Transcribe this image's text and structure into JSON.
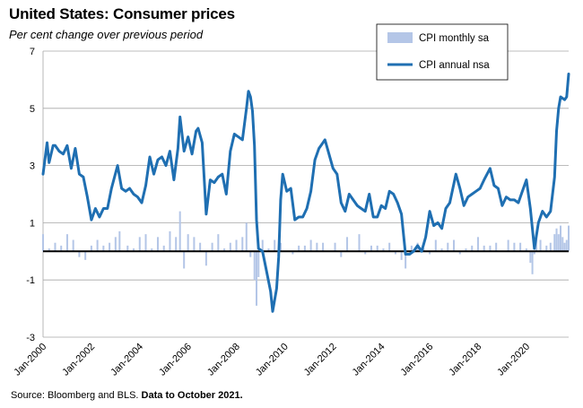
{
  "title": "United States: Consumer prices",
  "subtitle": "Per cent change over previous period",
  "source": {
    "prefix": "Source: Bloomberg and BLS.",
    "note": "Data to October 2021."
  },
  "colors": {
    "monthly": "#b4c6e7",
    "annual": "#1f6fb2",
    "grid": "#a6a6a6",
    "axis": "#000000"
  },
  "chart_data": {
    "type": "line",
    "ylim": [
      -3,
      7
    ],
    "y_ticks": [
      7,
      5,
      3,
      1,
      -1,
      -3
    ],
    "grid": true,
    "legend_position": "top-right",
    "x_range": [
      "2000-01",
      "2021-10"
    ],
    "x_ticks": [
      "Jan-2000",
      "Jan-2002",
      "Jan-2004",
      "Jan-2006",
      "Jan-2008",
      "Jan-2010",
      "Jan-2012",
      "Jan-2014",
      "Jan-2016",
      "Jan-2018",
      "Jan-2020"
    ],
    "series": [
      {
        "name": "CPI monthly sa",
        "kind": "bar",
        "x": [
          "2000-01",
          "2000-04",
          "2000-07",
          "2000-10",
          "2001-01",
          "2001-04",
          "2001-07",
          "2001-10",
          "2002-01",
          "2002-04",
          "2002-07",
          "2002-10",
          "2003-01",
          "2003-03",
          "2003-07",
          "2003-10",
          "2004-01",
          "2004-04",
          "2004-07",
          "2004-10",
          "2005-01",
          "2005-04",
          "2005-07",
          "2005-09",
          "2005-11",
          "2006-01",
          "2006-04",
          "2006-07",
          "2006-10",
          "2007-01",
          "2007-04",
          "2007-07",
          "2007-10",
          "2008-01",
          "2008-04",
          "2008-06",
          "2008-08",
          "2008-10",
          "2008-11",
          "2008-12",
          "2009-02",
          "2009-05",
          "2009-08",
          "2009-11",
          "2010-02",
          "2010-05",
          "2010-08",
          "2010-11",
          "2011-02",
          "2011-05",
          "2011-08",
          "2011-11",
          "2012-02",
          "2012-05",
          "2012-08",
          "2012-11",
          "2013-02",
          "2013-05",
          "2013-08",
          "2013-11",
          "2014-02",
          "2014-05",
          "2014-08",
          "2014-11",
          "2015-01",
          "2015-04",
          "2015-07",
          "2015-10",
          "2016-01",
          "2016-04",
          "2016-07",
          "2016-10",
          "2017-01",
          "2017-04",
          "2017-07",
          "2017-10",
          "2018-01",
          "2018-04",
          "2018-07",
          "2018-10",
          "2019-01",
          "2019-04",
          "2019-07",
          "2019-10",
          "2020-01",
          "2020-03",
          "2020-04",
          "2020-05",
          "2020-06",
          "2020-08",
          "2020-11",
          "2021-01",
          "2021-03",
          "2021-04",
          "2021-05",
          "2021-06",
          "2021-07",
          "2021-08",
          "2021-09",
          "2021-10"
        ],
        "values": [
          0.6,
          0.1,
          0.3,
          0.2,
          0.6,
          0.4,
          -0.2,
          -0.3,
          0.2,
          0.4,
          0.2,
          0.3,
          0.5,
          0.7,
          0.2,
          0.1,
          0.5,
          0.6,
          0.1,
          0.5,
          0.2,
          0.7,
          0.5,
          1.4,
          -0.6,
          0.6,
          0.5,
          0.3,
          -0.5,
          0.3,
          0.6,
          0.1,
          0.3,
          0.4,
          0.5,
          1.0,
          -0.2,
          -1.0,
          -1.9,
          -0.9,
          0.4,
          0.1,
          0.4,
          0.3,
          0.0,
          -0.1,
          0.2,
          0.2,
          0.4,
          0.3,
          0.3,
          0.0,
          0.3,
          -0.2,
          0.5,
          0.0,
          0.6,
          -0.1,
          0.2,
          0.2,
          0.1,
          0.3,
          -0.1,
          -0.3,
          -0.6,
          0.2,
          0.3,
          0.1,
          -0.1,
          0.4,
          0.1,
          0.3,
          0.4,
          -0.1,
          0.1,
          0.2,
          0.5,
          0.2,
          0.2,
          0.3,
          0.0,
          0.4,
          0.3,
          0.3,
          0.1,
          -0.4,
          -0.8,
          -0.1,
          0.6,
          0.4,
          0.2,
          0.3,
          0.6,
          0.8,
          0.6,
          0.9,
          0.5,
          0.3,
          0.4,
          0.9
        ]
      },
      {
        "name": "CPI annual nsa",
        "kind": "line",
        "x": [
          "2000-01",
          "2000-03",
          "2000-04",
          "2000-06",
          "2000-07",
          "2000-09",
          "2000-11",
          "2001-01",
          "2001-03",
          "2001-05",
          "2001-07",
          "2001-09",
          "2001-11",
          "2002-01",
          "2002-03",
          "2002-05",
          "2002-07",
          "2002-09",
          "2002-11",
          "2003-02",
          "2003-04",
          "2003-06",
          "2003-08",
          "2003-10",
          "2003-12",
          "2004-02",
          "2004-04",
          "2004-06",
          "2004-08",
          "2004-10",
          "2004-12",
          "2005-02",
          "2005-04",
          "2005-06",
          "2005-08",
          "2005-09",
          "2005-11",
          "2006-01",
          "2006-03",
          "2006-05",
          "2006-06",
          "2006-08",
          "2006-10",
          "2006-12",
          "2007-02",
          "2007-04",
          "2007-06",
          "2007-08",
          "2007-10",
          "2007-12",
          "2008-02",
          "2008-04",
          "2008-06",
          "2008-07",
          "2008-08",
          "2008-09",
          "2008-10",
          "2008-11",
          "2008-12",
          "2009-02",
          "2009-04",
          "2009-06",
          "2009-07",
          "2009-09",
          "2009-10",
          "2009-11",
          "2009-12",
          "2010-02",
          "2010-04",
          "2010-06",
          "2010-08",
          "2010-10",
          "2010-12",
          "2011-02",
          "2011-04",
          "2011-06",
          "2011-08",
          "2011-09",
          "2011-11",
          "2012-01",
          "2012-03",
          "2012-05",
          "2012-07",
          "2012-09",
          "2012-11",
          "2013-01",
          "2013-03",
          "2013-05",
          "2013-07",
          "2013-09",
          "2013-11",
          "2014-01",
          "2014-03",
          "2014-05",
          "2014-07",
          "2014-09",
          "2014-11",
          "2015-01",
          "2015-03",
          "2015-05",
          "2015-07",
          "2015-09",
          "2015-11",
          "2016-01",
          "2016-03",
          "2016-05",
          "2016-07",
          "2016-09",
          "2016-11",
          "2017-02",
          "2017-04",
          "2017-06",
          "2017-08",
          "2017-10",
          "2017-12",
          "2018-02",
          "2018-04",
          "2018-07",
          "2018-09",
          "2018-11",
          "2019-01",
          "2019-03",
          "2019-05",
          "2019-07",
          "2019-09",
          "2019-11",
          "2020-01",
          "2020-03",
          "2020-05",
          "2020-07",
          "2020-09",
          "2020-11",
          "2021-01",
          "2021-03",
          "2021-04",
          "2021-05",
          "2021-06",
          "2021-08",
          "2021-09",
          "2021-10"
        ],
        "values": [
          2.7,
          3.8,
          3.1,
          3.7,
          3.7,
          3.5,
          3.4,
          3.7,
          2.9,
          3.6,
          2.7,
          2.6,
          1.9,
          1.1,
          1.5,
          1.2,
          1.5,
          1.5,
          2.2,
          3.0,
          2.2,
          2.1,
          2.2,
          2.0,
          1.9,
          1.7,
          2.3,
          3.3,
          2.7,
          3.2,
          3.3,
          3.0,
          3.5,
          2.5,
          3.6,
          4.7,
          3.5,
          4.0,
          3.4,
          4.2,
          4.3,
          3.8,
          1.3,
          2.5,
          2.4,
          2.6,
          2.7,
          2.0,
          3.5,
          4.1,
          4.0,
          3.9,
          5.0,
          5.6,
          5.4,
          4.9,
          3.7,
          1.1,
          0.1,
          0.0,
          -0.7,
          -1.4,
          -2.1,
          -1.3,
          -0.2,
          1.8,
          2.7,
          2.1,
          2.2,
          1.1,
          1.2,
          1.2,
          1.5,
          2.1,
          3.2,
          3.6,
          3.8,
          3.9,
          3.4,
          2.9,
          2.7,
          1.7,
          1.4,
          2.0,
          1.8,
          1.6,
          1.5,
          1.4,
          2.0,
          1.2,
          1.2,
          1.6,
          1.5,
          2.1,
          2.0,
          1.7,
          1.3,
          -0.1,
          -0.1,
          0.0,
          0.2,
          0.0,
          0.5,
          1.4,
          0.9,
          1.0,
          0.8,
          1.5,
          1.7,
          2.7,
          2.2,
          1.6,
          1.9,
          2.0,
          2.1,
          2.2,
          2.5,
          2.9,
          2.3,
          2.2,
          1.6,
          1.9,
          1.8,
          1.8,
          1.7,
          2.1,
          2.5,
          1.5,
          0.1,
          1.0,
          1.4,
          1.2,
          1.4,
          2.6,
          4.2,
          5.0,
          5.4,
          5.3,
          5.4,
          6.2
        ]
      }
    ]
  }
}
